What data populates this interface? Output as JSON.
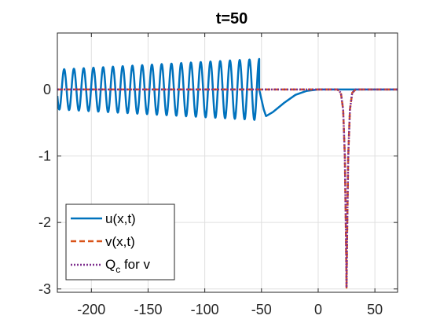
{
  "chart_data": {
    "type": "line",
    "title": "t=50",
    "xlabel": "",
    "ylabel": "",
    "xlim": [
      -230,
      70
    ],
    "ylim": [
      -3.05,
      0.85
    ],
    "grid": true,
    "x_ticks": [
      -200,
      -150,
      -100,
      -50,
      0,
      50
    ],
    "x_tick_labels": [
      "-200",
      "-150",
      "-100",
      "-50",
      "0",
      "50"
    ],
    "y_ticks": [
      0,
      -1,
      -2,
      -3
    ],
    "y_tick_labels": [
      "0",
      "-1",
      "-2",
      "-3"
    ],
    "legend": {
      "placement": "bottom-left",
      "entries": [
        {
          "label": "u(x,t)",
          "style": "solid"
        },
        {
          "label": "v(x,t)",
          "style": "dashed"
        },
        {
          "label_main": "Q",
          "label_sub": "c",
          "label_rest": " for v",
          "style": "dotted"
        }
      ]
    },
    "series": [
      {
        "name": "u(x,t)",
        "color": "#0072BD",
        "style": "solid",
        "description": "oscillatory wave train for x < -52 with amplitude growing from about 0.30 to 0.45, period about 8.5; a dip to about -0.40 near x = -46, then smooth return to 0 by x ≈ 0",
        "oscillation": {
          "x_start": -230,
          "x_end": -52,
          "period": 8.6,
          "amplitude_start": 0.3,
          "amplitude_end": 0.46
        },
        "dip": {
          "x": -46,
          "y": -0.4
        },
        "points": [
          [
            -52,
            0.0
          ],
          [
            -48,
            -0.3
          ],
          [
            -46,
            -0.4
          ],
          [
            -40,
            -0.34
          ],
          [
            -30,
            -0.2
          ],
          [
            -20,
            -0.08
          ],
          [
            -10,
            -0.02
          ],
          [
            0,
            0.0
          ],
          [
            70,
            0.0
          ]
        ]
      },
      {
        "name": "v(x,t)",
        "color": "#D95319",
        "style": "dashed",
        "points": [
          [
            -230,
            0.0
          ],
          [
            17,
            0.0
          ],
          [
            20,
            -0.05
          ],
          [
            22,
            -0.3
          ],
          [
            23.5,
            -1.0
          ],
          [
            24.5,
            -2.2
          ],
          [
            25,
            -2.98
          ],
          [
            25.5,
            -2.2
          ],
          [
            26.5,
            -1.0
          ],
          [
            28,
            -0.3
          ],
          [
            30,
            -0.05
          ],
          [
            33,
            0.0
          ],
          [
            70,
            0.0
          ]
        ]
      },
      {
        "name": "Q_c for v",
        "color": "#7E2F8E",
        "style": "dotted",
        "points": [
          [
            -230,
            0.0
          ],
          [
            17,
            0.0
          ],
          [
            20,
            -0.05
          ],
          [
            22,
            -0.3
          ],
          [
            23.5,
            -1.0
          ],
          [
            24.5,
            -2.2
          ],
          [
            25,
            -2.98
          ],
          [
            25.5,
            -2.2
          ],
          [
            26.5,
            -1.0
          ],
          [
            28,
            -0.3
          ],
          [
            30,
            -0.05
          ],
          [
            33,
            0.0
          ],
          [
            70,
            0.0
          ]
        ]
      }
    ]
  }
}
